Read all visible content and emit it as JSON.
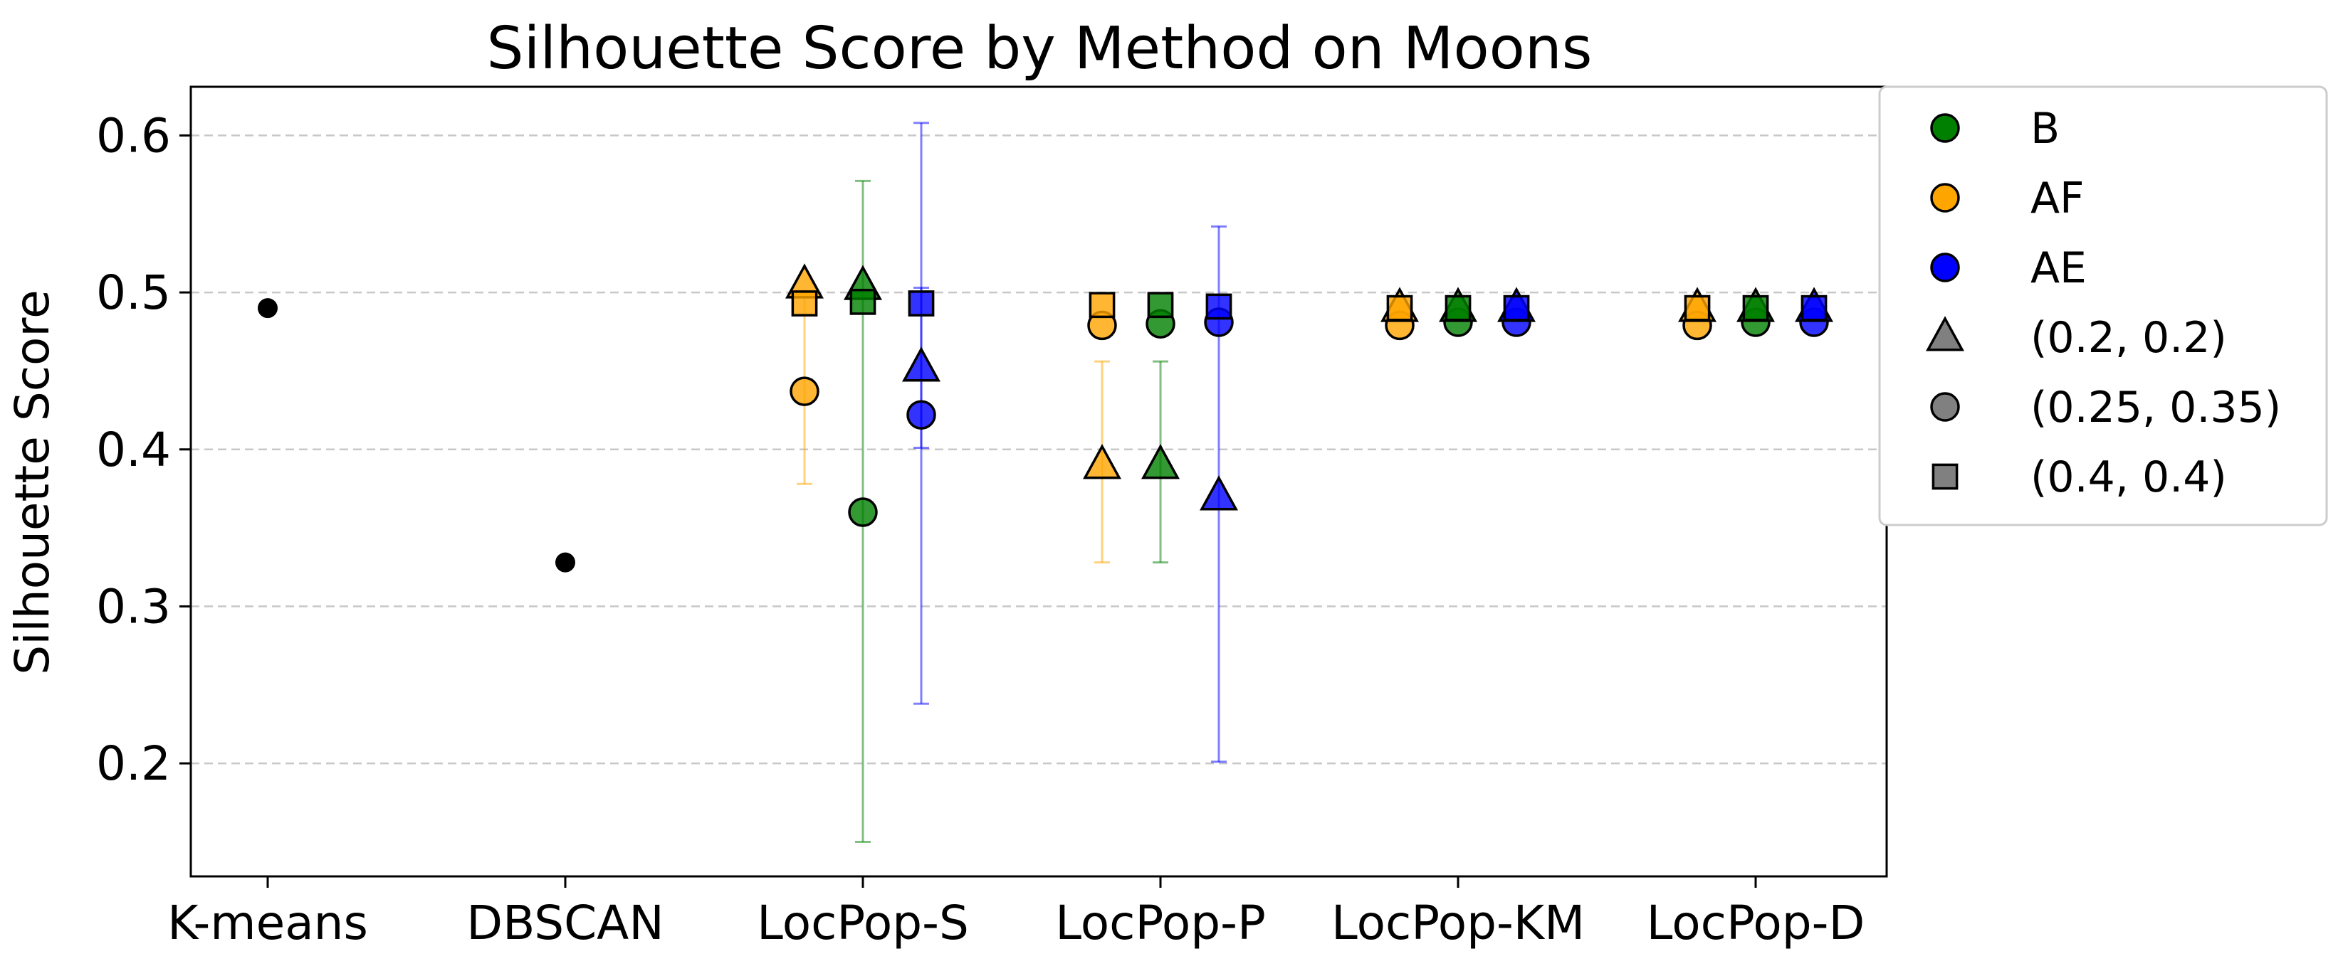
{
  "chart_data": {
    "type": "scatter",
    "title": "Silhouette Score by Method on Moons",
    "xlabel": "",
    "ylabel": "Silhouette Score",
    "categories": [
      "K-means",
      "DBSCAN",
      "LocPop-S",
      "LocPop-P",
      "LocPop-KM",
      "LocPop-D"
    ],
    "ylim": [
      0.128,
      0.631
    ],
    "yticks": [
      0.2,
      0.3,
      0.4,
      0.5,
      0.6
    ],
    "ytick_labels": [
      "0.2",
      "0.3",
      "0.4",
      "0.5",
      "0.6"
    ],
    "grid": "y-dashed",
    "legend_placement": "outside-top-right",
    "baselines": [
      {
        "category": "K-means",
        "value": 0.49,
        "color": "#000000"
      },
      {
        "category": "DBSCAN",
        "value": 0.328,
        "color": "#000000"
      }
    ],
    "series": [
      {
        "name": "B",
        "color": "#008000",
        "offset": 0,
        "points": [
          {
            "category": "LocPop-S",
            "marker": "triangle",
            "value": 0.504
          },
          {
            "category": "LocPop-S",
            "marker": "circle",
            "value": 0.36,
            "err_low": 0.15,
            "err_high": 0.571
          },
          {
            "category": "LocPop-S",
            "marker": "square",
            "value": 0.494
          },
          {
            "category": "LocPop-P",
            "marker": "triangle",
            "value": 0.39,
            "err_low": 0.328,
            "err_high": 0.456
          },
          {
            "category": "LocPop-P",
            "marker": "circle",
            "value": 0.48
          },
          {
            "category": "LocPop-P",
            "marker": "square",
            "value": 0.492
          },
          {
            "category": "LocPop-KM",
            "marker": "triangle",
            "value": 0.49
          },
          {
            "category": "LocPop-KM",
            "marker": "circle",
            "value": 0.481
          },
          {
            "category": "LocPop-KM",
            "marker": "square",
            "value": 0.49
          },
          {
            "category": "LocPop-D",
            "marker": "triangle",
            "value": 0.49
          },
          {
            "category": "LocPop-D",
            "marker": "circle",
            "value": 0.481
          },
          {
            "category": "LocPop-D",
            "marker": "square",
            "value": 0.49
          }
        ]
      },
      {
        "name": "AF",
        "color": "#FFA500",
        "offset": -1,
        "points": [
          {
            "category": "LocPop-S",
            "marker": "triangle",
            "value": 0.505
          },
          {
            "category": "LocPop-S",
            "marker": "circle",
            "value": 0.437,
            "err_low": 0.378,
            "err_high": 0.5
          },
          {
            "category": "LocPop-S",
            "marker": "square",
            "value": 0.493
          },
          {
            "category": "LocPop-P",
            "marker": "triangle",
            "value": 0.39,
            "err_low": 0.328,
            "err_high": 0.456
          },
          {
            "category": "LocPop-P",
            "marker": "circle",
            "value": 0.479
          },
          {
            "category": "LocPop-P",
            "marker": "square",
            "value": 0.492
          },
          {
            "category": "LocPop-KM",
            "marker": "triangle",
            "value": 0.49
          },
          {
            "category": "LocPop-KM",
            "marker": "circle",
            "value": 0.479
          },
          {
            "category": "LocPop-KM",
            "marker": "square",
            "value": 0.49
          },
          {
            "category": "LocPop-D",
            "marker": "triangle",
            "value": 0.49
          },
          {
            "category": "LocPop-D",
            "marker": "circle",
            "value": 0.479
          },
          {
            "category": "LocPop-D",
            "marker": "square",
            "value": 0.49
          }
        ]
      },
      {
        "name": "AE",
        "color": "#0000FF",
        "offset": 1,
        "points": [
          {
            "category": "LocPop-S",
            "marker": "triangle",
            "value": 0.452
          },
          {
            "category": "LocPop-S",
            "marker": "circle",
            "value": 0.422,
            "err_low": 0.238,
            "err_high": 0.608
          },
          {
            "category": "LocPop-S",
            "marker": "square",
            "value": 0.493,
            "err_low": 0.401,
            "err_high": 0.503
          },
          {
            "category": "LocPop-P",
            "marker": "triangle",
            "value": 0.37,
            "err_low": 0.201,
            "err_high": 0.542
          },
          {
            "category": "LocPop-P",
            "marker": "circle",
            "value": 0.481
          },
          {
            "category": "LocPop-P",
            "marker": "square",
            "value": 0.491
          },
          {
            "category": "LocPop-KM",
            "marker": "triangle",
            "value": 0.49
          },
          {
            "category": "LocPop-KM",
            "marker": "circle",
            "value": 0.481
          },
          {
            "category": "LocPop-KM",
            "marker": "square",
            "value": 0.49
          },
          {
            "category": "LocPop-D",
            "marker": "triangle",
            "value": 0.49
          },
          {
            "category": "LocPop-D",
            "marker": "circle",
            "value": 0.481
          },
          {
            "category": "LocPop-D",
            "marker": "square",
            "value": 0.49
          }
        ]
      }
    ],
    "legend": [
      {
        "label": "B",
        "marker": "circle",
        "color": "#008000"
      },
      {
        "label": "AF",
        "marker": "circle",
        "color": "#FFA500"
      },
      {
        "label": "AE",
        "marker": "circle",
        "color": "#0000FF"
      },
      {
        "label": "(0.2, 0.2)",
        "marker": "triangle",
        "color": "#808080"
      },
      {
        "label": "(0.25, 0.35)",
        "marker": "circle",
        "color": "#808080"
      },
      {
        "label": "(0.4, 0.4)",
        "marker": "square",
        "color": "#808080"
      }
    ]
  }
}
